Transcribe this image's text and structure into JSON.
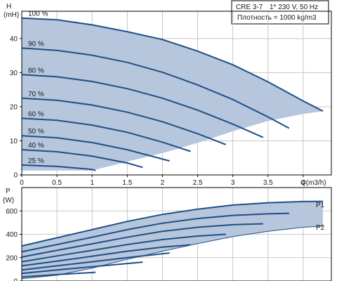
{
  "header": {
    "model": "CRE 3-7",
    "supply": "1* 230 V, 50 Hz",
    "density": "Плотность = 1000 kg/m3"
  },
  "colors": {
    "envelope_fill": "#b6c6dc",
    "curve": "#1f4f86",
    "grid": "#c8c8c8",
    "axis": "#000000"
  },
  "chart_data": [
    {
      "type": "line",
      "name": "head",
      "ylabel_line1": "H",
      "ylabel_line2": "(mH)",
      "xlabel": "Q(m3/h)",
      "xlim": [
        0,
        4.4
      ],
      "ylim": [
        0,
        48
      ],
      "xticks": [
        0,
        0.5,
        1,
        1.5,
        2,
        2.5,
        3,
        3.5,
        4
      ],
      "xtick_labels": [
        "0",
        "0.5",
        "1",
        "1.5",
        "2",
        "2.5",
        "3",
        "3.5",
        "4"
      ],
      "yticks": [
        0,
        10,
        20,
        30,
        40
      ],
      "ytick_labels": [
        "0",
        "10",
        "20",
        "30",
        "40"
      ],
      "envelope": [
        [
          0,
          46
        ],
        [
          0.5,
          45.5
        ],
        [
          1,
          44
        ],
        [
          1.5,
          42
        ],
        [
          2,
          39.7
        ],
        [
          2.5,
          36.3
        ],
        [
          3,
          32.3
        ],
        [
          3.5,
          27.3
        ],
        [
          4,
          21.7
        ],
        [
          4.28,
          18.7
        ],
        [
          4,
          17.9
        ],
        [
          3.5,
          15.8
        ],
        [
          3,
          12.8
        ],
        [
          2.5,
          9.4
        ],
        [
          2,
          6.4
        ],
        [
          1.5,
          3.9
        ],
        [
          1,
          1.3
        ],
        [
          0,
          1.3
        ]
      ],
      "series": [
        {
          "label": "100 %",
          "x": [
            0,
            0.5,
            1,
            1.5,
            2,
            2.5,
            3,
            3.5,
            4,
            4.28
          ],
          "y": [
            46,
            45.5,
            44,
            42,
            39.7,
            36.3,
            32.3,
            27.3,
            21.7,
            18.7
          ]
        },
        {
          "label": "90 %",
          "x": [
            0,
            0.5,
            1,
            1.5,
            2,
            2.5,
            3,
            3.5,
            3.8
          ],
          "y": [
            37.2,
            36.5,
            35.1,
            33,
            30.1,
            26.4,
            22.1,
            17,
            13.7
          ]
        },
        {
          "label": "80 %",
          "x": [
            0,
            0.5,
            1,
            1.5,
            2,
            2.5,
            3,
            3.43
          ],
          "y": [
            29.4,
            28.8,
            27.4,
            25.3,
            22.5,
            19,
            14.9,
            11
          ]
        },
        {
          "label": "70 %",
          "x": [
            0,
            0.5,
            1,
            1.5,
            2,
            2.5,
            2.9
          ],
          "y": [
            22.5,
            21.9,
            20.5,
            18.4,
            15.6,
            12.1,
            8.9
          ]
        },
        {
          "label": "60 %",
          "x": [
            0,
            0.5,
            1,
            1.5,
            2,
            2.4
          ],
          "y": [
            16.6,
            16,
            14.6,
            12.5,
            9.6,
            6.9
          ]
        },
        {
          "label": "50 %",
          "x": [
            0,
            0.5,
            1,
            1.5,
            2.1
          ],
          "y": [
            11.5,
            10.9,
            9.5,
            7.4,
            4.1
          ]
        },
        {
          "label": "40 %",
          "x": [
            0,
            0.5,
            1,
            1.5,
            1.72
          ],
          "y": [
            7.4,
            6.8,
            5.5,
            3.5,
            2.2
          ]
        },
        {
          "label": "25 %",
          "x": [
            0,
            0.5,
            1,
            1.05
          ],
          "y": [
            2.9,
            2.5,
            1.6,
            1.3
          ]
        }
      ]
    },
    {
      "type": "line",
      "name": "power",
      "ylabel_line1": "P",
      "ylabel_line2": "(W)",
      "xlim": [
        0,
        4.4
      ],
      "ylim": [
        0,
        800
      ],
      "yticks": [
        0,
        200,
        400,
        600
      ],
      "ytick_labels": [
        "0",
        "200",
        "400",
        "600"
      ],
      "series_labels": [
        "P1",
        "P2"
      ],
      "envelope_upper": [
        [
          0,
          300
        ],
        [
          0.5,
          370
        ],
        [
          1,
          440
        ],
        [
          1.5,
          510
        ],
        [
          2,
          570
        ],
        [
          2.5,
          615
        ],
        [
          3,
          650
        ],
        [
          3.5,
          670
        ],
        [
          4,
          680
        ],
        [
          4.28,
          682
        ]
      ],
      "envelope_lower": [
        [
          4.28,
          470
        ],
        [
          4,
          460
        ],
        [
          3.5,
          425
        ],
        [
          3,
          380
        ],
        [
          2.5,
          320
        ],
        [
          2,
          255
        ],
        [
          1.5,
          185
        ],
        [
          1,
          110
        ],
        [
          0.5,
          50
        ],
        [
          0,
          20
        ]
      ],
      "curves": [
        {
          "x": [
            0,
            0.5,
            1,
            1.5,
            2,
            2.5,
            3,
            3.5,
            4,
            4.28
          ],
          "y": [
            300,
            370,
            440,
            510,
            570,
            615,
            650,
            670,
            680,
            682
          ]
        },
        {
          "x": [
            0,
            0.5,
            1,
            1.5,
            2,
            2.5,
            3,
            3.5,
            3.8
          ],
          "y": [
            250,
            312,
            375,
            440,
            495,
            535,
            562,
            575,
            580
          ]
        },
        {
          "x": [
            0,
            0.5,
            1,
            1.5,
            2,
            2.5,
            3,
            3.43
          ],
          "y": [
            205,
            262,
            318,
            375,
            425,
            460,
            482,
            490
          ]
        },
        {
          "x": [
            0,
            0.5,
            1,
            1.5,
            2,
            2.5,
            2.9
          ],
          "y": [
            165,
            215,
            262,
            312,
            355,
            385,
            400
          ]
        },
        {
          "x": [
            0,
            0.5,
            1,
            1.5,
            2,
            2.4
          ],
          "y": [
            130,
            170,
            212,
            255,
            290,
            310
          ]
        },
        {
          "x": [
            0,
            0.5,
            1,
            1.5,
            2.1
          ],
          "y": [
            95,
            130,
            165,
            200,
            240
          ]
        },
        {
          "x": [
            0,
            0.5,
            1,
            1.5,
            1.72
          ],
          "y": [
            65,
            95,
            122,
            150,
            162
          ]
        },
        {
          "x": [
            0,
            0.5,
            1,
            1.05
          ],
          "y": [
            35,
            55,
            72,
            75
          ]
        },
        {
          "x": [
            0,
            0.5,
            1,
            1.5,
            2,
            2.5,
            3,
            3.5,
            4,
            4.28
          ],
          "y": [
            20,
            50,
            110,
            185,
            255,
            320,
            380,
            425,
            460,
            470
          ]
        }
      ]
    }
  ]
}
